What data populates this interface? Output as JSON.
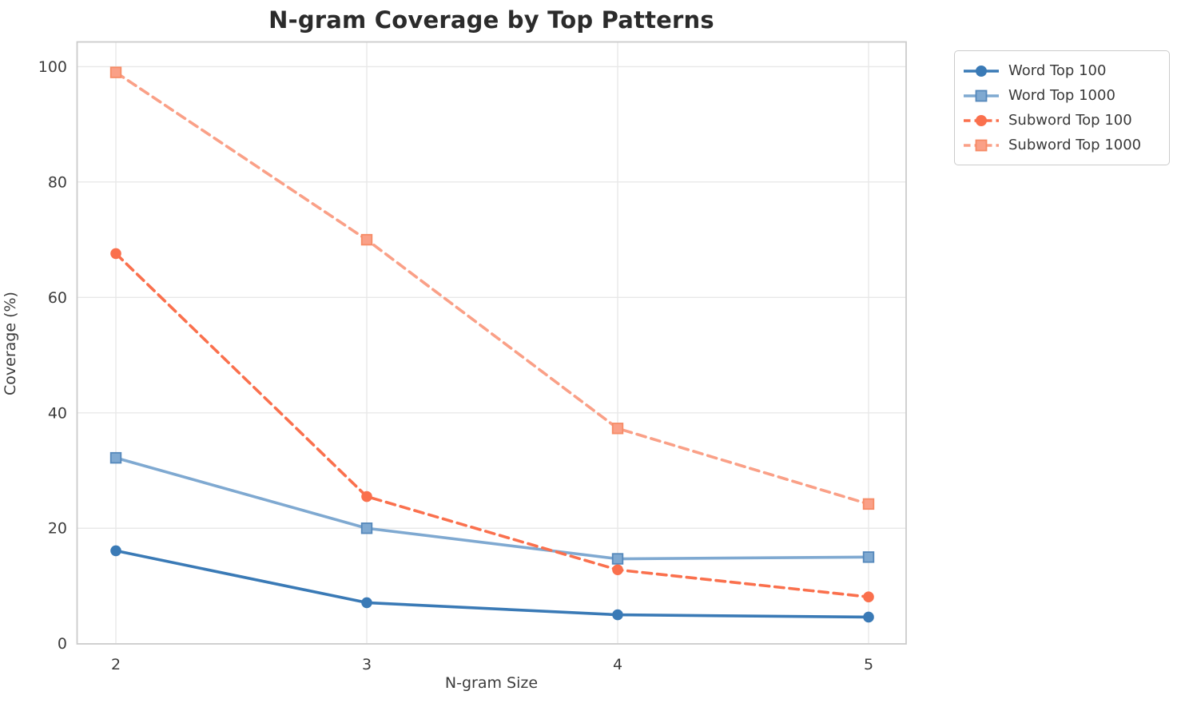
{
  "title": "N-gram Coverage by Top Patterns",
  "xlabel": "N-gram Size",
  "ylabel": "Coverage (%)",
  "chart_data": {
    "type": "line",
    "x": [
      2,
      3,
      4,
      5
    ],
    "x_tick_labels": [
      "2",
      "3",
      "4",
      "5"
    ],
    "y_ticks": [
      0,
      20,
      40,
      60,
      80,
      100
    ],
    "ylim": [
      0,
      104.3
    ],
    "grid": true,
    "legend_position": "outside-upper-right",
    "title": "N-gram Coverage by Top Patterns",
    "xlabel": "N-gram Size",
    "ylabel": "Coverage (%)",
    "series": [
      {
        "name": "Word Top 100",
        "color": "#3A7AB6",
        "marker_edge": "#3A7AB6",
        "marker": "circle",
        "line_style": "solid",
        "values": [
          16.1,
          7.1,
          5.0,
          4.6
        ]
      },
      {
        "name": "Word Top 1000",
        "color": "#7FA9D1",
        "marker_edge": "#5588BB",
        "marker": "square",
        "line_style": "solid",
        "values": [
          32.2,
          20.0,
          14.7,
          15.0
        ]
      },
      {
        "name": "Subword Top 100",
        "color": "#FA704D",
        "marker_edge": "#FA704D",
        "marker": "circle",
        "line_style": "dashed",
        "values": [
          67.6,
          25.5,
          12.8,
          8.1
        ]
      },
      {
        "name": "Subword Top 1000",
        "color": "#FAA087",
        "marker_edge": "#F68B66",
        "marker": "square",
        "line_style": "dashed",
        "values": [
          99.0,
          70.0,
          37.3,
          24.2
        ]
      }
    ]
  },
  "colors": {
    "background": "#FFFFFF",
    "gridline": "#E8E8E8",
    "spine": "#CCCCCC",
    "tick_text": "#3C3C3C",
    "title_text": "#2B2B2B",
    "legend_border": "#CBCBCB"
  }
}
